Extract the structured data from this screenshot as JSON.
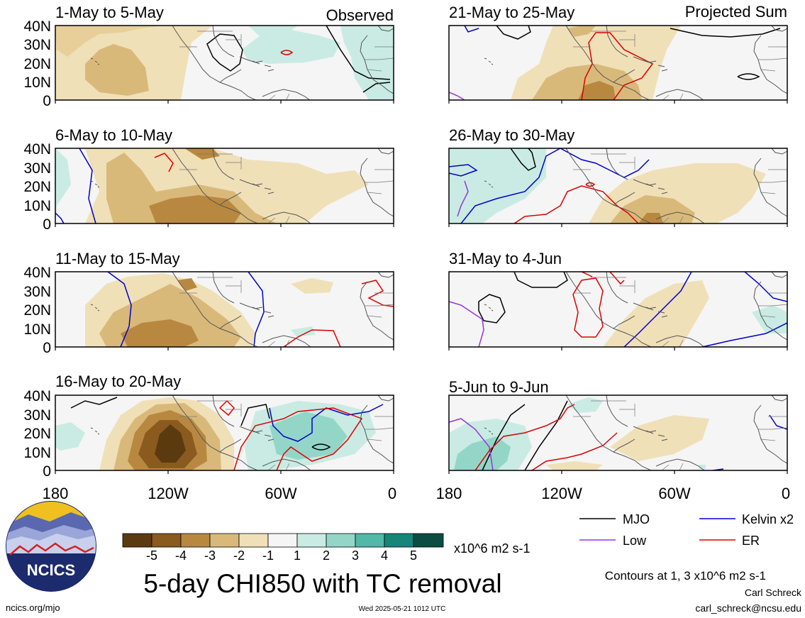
{
  "column_labels": {
    "left": "Observed",
    "right": "Projected Sum"
  },
  "left_panels": [
    "1-May to 5-May",
    "6-May to 10-May",
    "11-May to 15-May",
    "16-May to 20-May"
  ],
  "right_panels": [
    "21-May to 25-May",
    "26-May to 30-May",
    "31-May to 4-Jun",
    "5-Jun to 9-Jun"
  ],
  "lat_ticks": [
    "40N",
    "30N",
    "20N",
    "10N",
    "0"
  ],
  "lon_ticks": [
    "180",
    "120W",
    "60W",
    "0"
  ],
  "legend": {
    "items": [
      {
        "label": "MJO",
        "color": "#000000"
      },
      {
        "label": "Kelvin x2",
        "color": "#0000dd"
      },
      {
        "label": "Low",
        "color": "#9933dd"
      },
      {
        "label": "ER",
        "color": "#dd0000"
      }
    ],
    "contour_note": "Contours at 1, 3 x10^6 m2 s-1"
  },
  "colorbar": {
    "ticks": [
      "-5",
      "-4",
      "-3",
      "-2",
      "-1",
      "1",
      "2",
      "3",
      "4",
      "5"
    ],
    "units": "x10^6 m2 s-1",
    "colors": [
      "#5c3a10",
      "#8a5a1f",
      "#b98840",
      "#d9b97a",
      "#f0e0b8",
      "#f5f5f5",
      "#c9ebe3",
      "#93d6c8",
      "#52b8a8",
      "#16857a",
      "#0b4d43"
    ]
  },
  "main_title": "5-day CHI850 with TC removal",
  "logo_text": "NCICS",
  "footer": {
    "url": "ncics.org/mjo",
    "timestamp": "Wed 2025-05-21 1012 UTC",
    "author": "Carl Schreck",
    "email": "carl_schreck@ncsu.edu"
  }
}
